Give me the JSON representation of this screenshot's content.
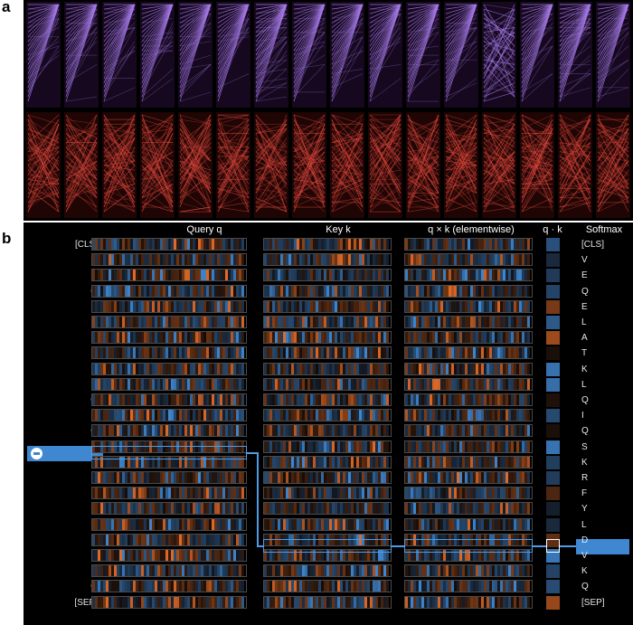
{
  "labels": {
    "a": "a",
    "b": "b"
  },
  "headers": {
    "query": "Query q",
    "key": "Key k",
    "product": "q × k (elementwise)",
    "dot": "q · k",
    "softmax": "Softmax"
  },
  "tokens": [
    "[CLS]",
    "V",
    "E",
    "Q",
    "E",
    "L",
    "A",
    "T",
    "K",
    "L",
    "Q",
    "I",
    "Q",
    "S",
    "K",
    "R",
    "F",
    "Y",
    "L",
    "D",
    "V",
    "K",
    "Q",
    "[SEP]"
  ],
  "selected_query_token": "S",
  "selected_key_token": "D",
  "colors": {
    "purple": "#a57be8",
    "red": "#e0473c",
    "positive": "#e06a28",
    "negative": "#3f87d1",
    "highlight": "#4e9be6"
  },
  "icons": {
    "deselect": "minus-circle-icon"
  }
}
